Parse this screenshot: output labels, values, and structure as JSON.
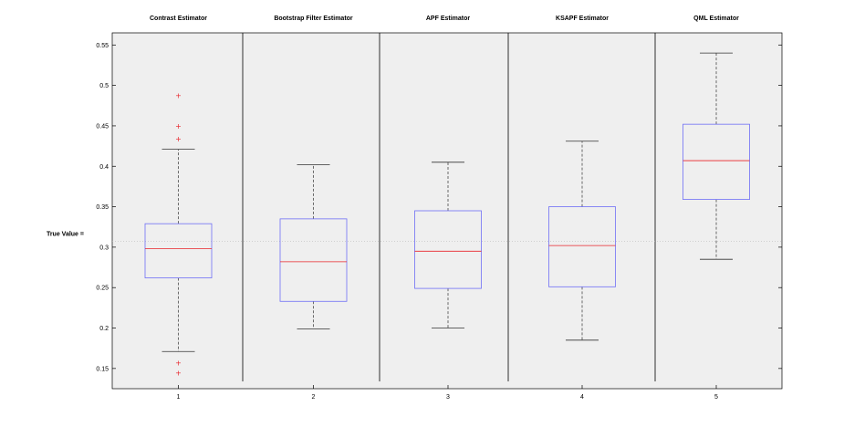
{
  "chart_data": {
    "type": "boxplot",
    "categories": [
      "1",
      "2",
      "3",
      "4",
      "5"
    ],
    "group_titles": [
      "Contrast Estimator",
      "Bootstrap Filter Estimator",
      "APF Estimator",
      "KSAPF Estimator",
      "QML Estimator"
    ],
    "ylim": [
      0.125,
      0.565
    ],
    "yticks": [
      0.15,
      0.2,
      0.25,
      0.3,
      0.35,
      0.4,
      0.45,
      0.5,
      0.55
    ],
    "ytick_labels": [
      "0.15",
      "0.2",
      "0.25",
      "0.3",
      "0.35",
      "0.4",
      "0.45",
      "0.5",
      "0.55"
    ],
    "true_value": {
      "label": "True Value =",
      "value": 0.307
    },
    "boxes": [
      {
        "whisker_low": 0.171,
        "q1": 0.262,
        "median": 0.298,
        "q3": 0.329,
        "whisker_high": 0.421,
        "outliers": [
          0.157,
          0.145,
          0.434,
          0.45,
          0.488
        ]
      },
      {
        "whisker_low": 0.199,
        "q1": 0.233,
        "median": 0.282,
        "q3": 0.335,
        "whisker_high": 0.402,
        "outliers": []
      },
      {
        "whisker_low": 0.2,
        "q1": 0.249,
        "median": 0.295,
        "q3": 0.345,
        "whisker_high": 0.405,
        "outliers": []
      },
      {
        "whisker_low": 0.185,
        "q1": 0.251,
        "median": 0.302,
        "q3": 0.35,
        "whisker_high": 0.431,
        "outliers": []
      },
      {
        "whisker_low": 0.285,
        "q1": 0.359,
        "median": 0.407,
        "q3": 0.452,
        "whisker_high": 0.54,
        "outliers": []
      }
    ],
    "colors": {
      "box": "#6e6ef5",
      "median": "#e8242a",
      "whisker": "#333333",
      "outlier": "#e8242a",
      "background": "#efefef",
      "true_line": "#bdbdbd"
    },
    "grid": false
  }
}
